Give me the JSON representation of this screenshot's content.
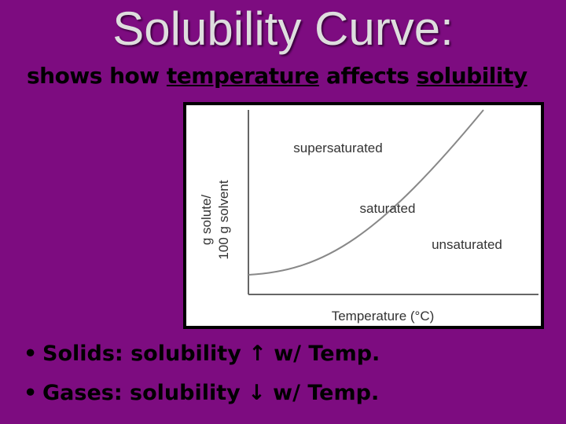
{
  "header": {
    "title": "Solubility Curve:",
    "subtitle": [
      {
        "text": "shows how ",
        "underline": false
      },
      {
        "text": "temperature",
        "underline": true
      },
      {
        "text": " affects ",
        "underline": false
      },
      {
        "text": "solubility",
        "underline": true
      }
    ]
  },
  "figure": {
    "regions": [
      "supersaturated",
      "saturated",
      "unsaturated"
    ],
    "y_label": [
      "g solute/",
      "100 g solvent"
    ],
    "x_label": "Temperature (°C)"
  },
  "bullets": [
    "Solids: solubility ↑ w/ Temp.",
    "Gases: solubility ↓ w/ Temp."
  ]
}
